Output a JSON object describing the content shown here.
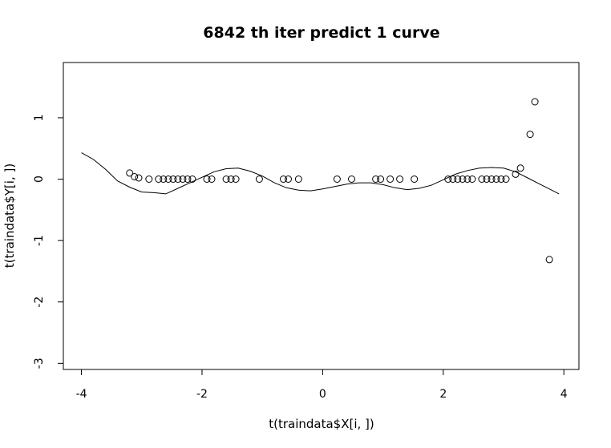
{
  "chart_data": {
    "type": "scatter",
    "title": "6842 th iter  predict 1 curve",
    "xlabel": "t(traindata$X[i, ])",
    "ylabel": "t(traindata$Y[i, ])",
    "xlim": [
      -4.3,
      4.25
    ],
    "ylim": [
      -3.1,
      1.9
    ],
    "x_ticks": [
      -4,
      -2,
      0,
      2,
      4
    ],
    "x_tick_labels": [
      "-4",
      "-2",
      "0",
      "2",
      "4"
    ],
    "y_ticks": [
      -3,
      -2,
      -1,
      0,
      1
    ],
    "y_tick_labels": [
      "-3",
      "-2",
      "-1",
      "0",
      "1"
    ],
    "grid": false,
    "legend": "none",
    "series": [
      {
        "kind": "points",
        "marker": "open-circle",
        "points": [
          [
            -3.2,
            0.1
          ],
          [
            -3.12,
            0.04
          ],
          [
            -3.05,
            0.02
          ],
          [
            -2.88,
            0
          ],
          [
            -2.72,
            0
          ],
          [
            -2.64,
            0
          ],
          [
            -2.56,
            0
          ],
          [
            -2.48,
            0
          ],
          [
            -2.4,
            0
          ],
          [
            -2.32,
            0
          ],
          [
            -2.24,
            0
          ],
          [
            -2.16,
            0
          ],
          [
            -1.92,
            0
          ],
          [
            -1.84,
            0
          ],
          [
            -1.6,
            0
          ],
          [
            -1.52,
            0
          ],
          [
            -1.44,
            0
          ],
          [
            -1.05,
            0
          ],
          [
            -0.65,
            0
          ],
          [
            -0.57,
            0
          ],
          [
            -0.4,
            0
          ],
          [
            0.24,
            0
          ],
          [
            0.48,
            0
          ],
          [
            0.88,
            0
          ],
          [
            0.96,
            0
          ],
          [
            1.12,
            0
          ],
          [
            1.28,
            0
          ],
          [
            1.52,
            0
          ],
          [
            2.08,
            0
          ],
          [
            2.16,
            0
          ],
          [
            2.24,
            0
          ],
          [
            2.32,
            0
          ],
          [
            2.4,
            0
          ],
          [
            2.48,
            0
          ],
          [
            2.64,
            0
          ],
          [
            2.72,
            0
          ],
          [
            2.8,
            0
          ],
          [
            2.88,
            0
          ],
          [
            2.96,
            0
          ],
          [
            3.04,
            0
          ],
          [
            3.2,
            0.08
          ],
          [
            3.28,
            0.18
          ],
          [
            3.44,
            0.73
          ],
          [
            3.52,
            1.26
          ],
          [
            3.76,
            -1.31
          ]
        ]
      },
      {
        "kind": "line",
        "points": [
          [
            -4.0,
            0.43
          ],
          [
            -3.8,
            0.32
          ],
          [
            -3.6,
            0.16
          ],
          [
            -3.4,
            -0.03
          ],
          [
            -3.2,
            -0.13
          ],
          [
            -3.0,
            -0.21
          ],
          [
            -2.8,
            -0.22
          ],
          [
            -2.6,
            -0.24
          ],
          [
            -2.4,
            -0.15
          ],
          [
            -2.2,
            -0.06
          ],
          [
            -2.0,
            0.03
          ],
          [
            -1.8,
            0.12
          ],
          [
            -1.6,
            0.17
          ],
          [
            -1.4,
            0.18
          ],
          [
            -1.2,
            0.13
          ],
          [
            -1.0,
            0.05
          ],
          [
            -0.8,
            -0.06
          ],
          [
            -0.6,
            -0.14
          ],
          [
            -0.4,
            -0.18
          ],
          [
            -0.2,
            -0.19
          ],
          [
            0.0,
            -0.16
          ],
          [
            0.2,
            -0.12
          ],
          [
            0.4,
            -0.08
          ],
          [
            0.6,
            -0.06
          ],
          [
            0.8,
            -0.06
          ],
          [
            1.0,
            -0.09
          ],
          [
            1.2,
            -0.14
          ],
          [
            1.4,
            -0.17
          ],
          [
            1.6,
            -0.15
          ],
          [
            1.8,
            -0.1
          ],
          [
            2.0,
            -0.01
          ],
          [
            2.2,
            0.08
          ],
          [
            2.4,
            0.14
          ],
          [
            2.6,
            0.18
          ],
          [
            2.8,
            0.19
          ],
          [
            3.0,
            0.18
          ],
          [
            3.2,
            0.12
          ],
          [
            3.4,
            0.02
          ],
          [
            3.6,
            -0.08
          ],
          [
            3.8,
            -0.18
          ],
          [
            3.92,
            -0.24
          ]
        ]
      }
    ]
  }
}
